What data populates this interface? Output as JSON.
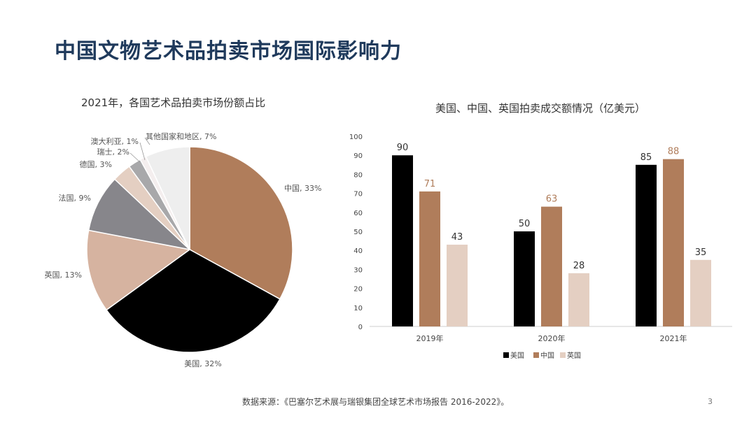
{
  "page": {
    "title": "中国文物艺术品拍卖市场国际影响力",
    "source": "数据来源：《巴塞尔艺术展与瑞银集团全球艺术市场报告 2016-2022》。",
    "page_number": "3"
  },
  "chart_data": [
    {
      "type": "pie",
      "title": "2021年，各国艺术品拍卖市场份额占比",
      "slices": [
        {
          "label": "中国, 33%",
          "value": 33,
          "color": "#b07d5b"
        },
        {
          "label": "美国, 32%",
          "value": 32,
          "color": "#000000"
        },
        {
          "label": "英国, 13%",
          "value": 13,
          "color": "#d6b3a0"
        },
        {
          "label": "法国, 9%",
          "value": 9,
          "color": "#87868b"
        },
        {
          "label": "德国, 3%",
          "value": 3,
          "color": "#e4cfc2"
        },
        {
          "label": "瑞士, 2%",
          "value": 2,
          "color": "#a8a8aa"
        },
        {
          "label": "澳大利亚, 1%",
          "value": 1,
          "color": "#f4eeee"
        },
        {
          "label": "其他国家和地区, 7%",
          "value": 7,
          "color": "#eeeeee"
        }
      ]
    },
    {
      "type": "bar",
      "title": "美国、中国、英国拍卖成交额情况（亿美元）",
      "categories": [
        "2019年",
        "2020年",
        "2021年"
      ],
      "series": [
        {
          "name": "美国",
          "values": [
            90,
            50,
            85
          ],
          "color": "#000000",
          "label_color": "#333333"
        },
        {
          "name": "中国",
          "values": [
            71,
            63,
            88
          ],
          "color": "#b07d5b",
          "label_color": "#b07d5b"
        },
        {
          "name": "英国",
          "values": [
            43,
            28,
            35
          ],
          "color": "#e4cfc2",
          "label_color": "#333333"
        }
      ],
      "ylim": [
        0,
        100
      ],
      "yticks": [
        0,
        10,
        20,
        30,
        40,
        50,
        60,
        70,
        80,
        90,
        100
      ],
      "legend": "bottom",
      "grid": false
    }
  ]
}
